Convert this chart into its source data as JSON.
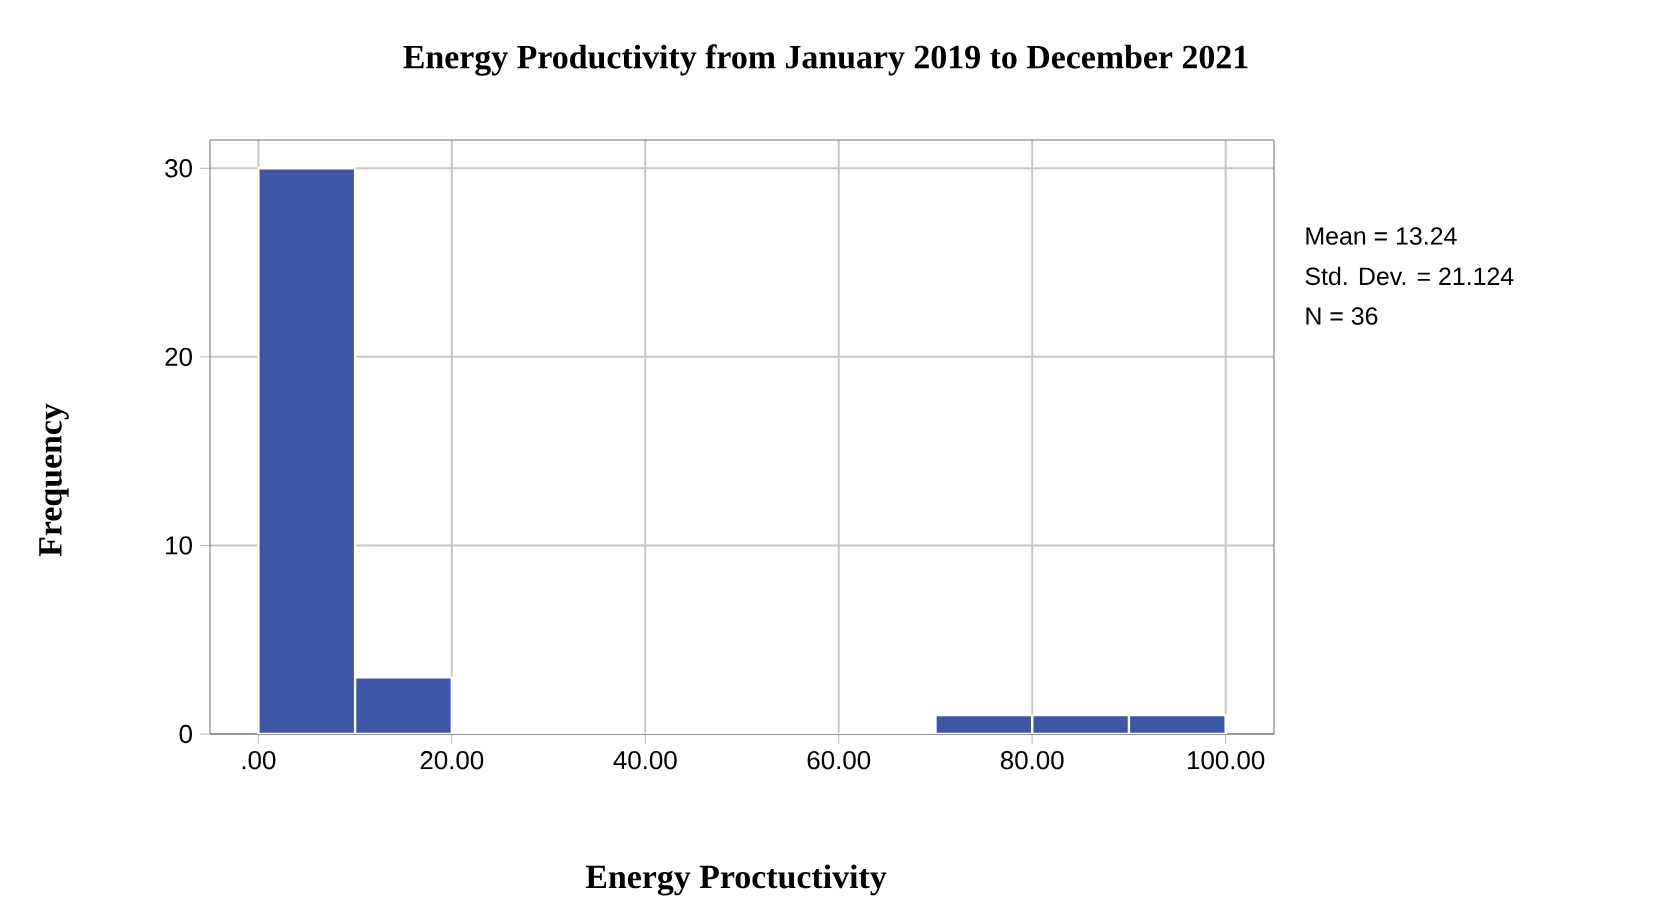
{
  "chart_data": {
    "type": "histogram",
    "title": "Energy Productivity from January 2019 to December 2021",
    "xlabel": "Energy Proctuctivity",
    "ylabel": "Frequency",
    "bins": [
      0,
      10,
      20,
      30,
      40,
      50,
      60,
      70,
      80,
      90,
      100
    ],
    "values": [
      30,
      3,
      0,
      0,
      0,
      0,
      0,
      1,
      1,
      1
    ],
    "color": "#3f55a5",
    "xlim": [
      -5,
      105
    ],
    "ylim": [
      0,
      31.5
    ],
    "xticks": [
      {
        "value": 0,
        "label": ".00"
      },
      {
        "value": 20,
        "label": "20.00"
      },
      {
        "value": 40,
        "label": "40.00"
      },
      {
        "value": 60,
        "label": "60.00"
      },
      {
        "value": 80,
        "label": "80.00"
      },
      {
        "value": 100,
        "label": "100.00"
      }
    ],
    "yticks": [
      0,
      10,
      20,
      30
    ],
    "grid": true,
    "annotations": [
      "Mean = 13.24",
      "Std. Dev. = 21.124",
      "N = 36"
    ]
  }
}
